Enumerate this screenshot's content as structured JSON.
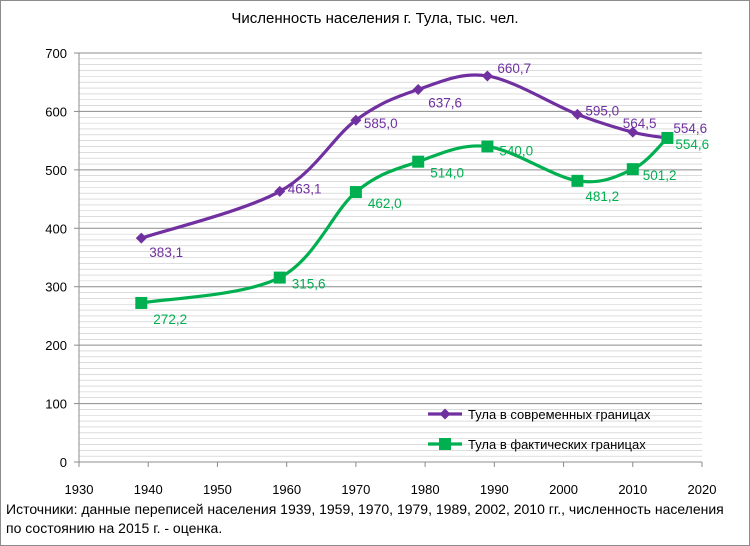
{
  "chart_data": {
    "type": "line",
    "title": "Численность населения г. Тула, тыс. чел.",
    "xlim": [
      1930,
      2020
    ],
    "ylim": [
      0,
      700
    ],
    "x_ticks": [
      "1930",
      "1940",
      "1950",
      "1960",
      "1970",
      "1980",
      "1990",
      "2000",
      "2010",
      "2020"
    ],
    "y_ticks": [
      "0",
      "100",
      "200",
      "300",
      "400",
      "500",
      "600",
      "700"
    ],
    "grid": true,
    "legend_position": "bottom-right",
    "series": [
      {
        "name": "Тула в современных границах",
        "color": "#7030a0",
        "marker": "diamond",
        "x": [
          1939,
          1959,
          1970,
          1979,
          1989,
          2002,
          2010,
          2015
        ],
        "y": [
          383.1,
          463.1,
          585.0,
          637.6,
          660.7,
          595.0,
          564.5,
          554.6
        ],
        "labels": [
          "383,1",
          "463,1",
          "585,0",
          "637,6",
          "660,7",
          "595,0",
          "564,5",
          "554,6"
        ]
      },
      {
        "name": "Тула в фактических границах",
        "color": "#00b050",
        "marker": "square",
        "x": [
          1939,
          1959,
          1970,
          1979,
          1989,
          2002,
          2010,
          2015
        ],
        "y": [
          272.2,
          315.6,
          462.0,
          514.0,
          540.0,
          481.2,
          501.2,
          554.6
        ],
        "labels": [
          "272,2",
          "315,6",
          "462,0",
          "514,0",
          "540,0",
          "481,2",
          "501,2",
          "554,6"
        ]
      }
    ]
  },
  "source_note": "Источники:  данные переписей населения 1939, 1959, 1970, 1979, 1989, 2002, 2010  гг.,  численность населения по состоянию на 2015 г. - оценка."
}
